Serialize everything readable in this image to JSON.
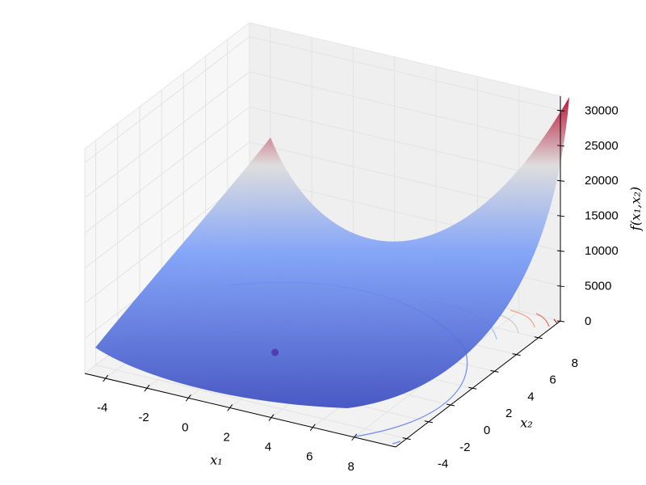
{
  "chart_data": {
    "type": "surface3d",
    "x_label": "x₁",
    "y_label": "x₂",
    "z_label": "f(x₁,x₂)",
    "xlim": [
      -5,
      10
    ],
    "ylim": [
      -5,
      10
    ],
    "zlim": [
      0,
      32000
    ],
    "xticks": [
      -4,
      -2,
      0,
      2,
      4,
      6,
      8
    ],
    "yticks": [
      -4,
      -2,
      0,
      2,
      4,
      6,
      8
    ],
    "zticks": [
      0,
      5000,
      10000,
      15000,
      20000,
      25000,
      30000
    ],
    "grid": true,
    "colormap": [
      "#3b4cc0",
      "#7b9ff9",
      "#dddcdc",
      "#b40426"
    ],
    "marker": {
      "x": 1,
      "y": 1,
      "z": 0,
      "color": "#4b2fa8"
    }
  }
}
